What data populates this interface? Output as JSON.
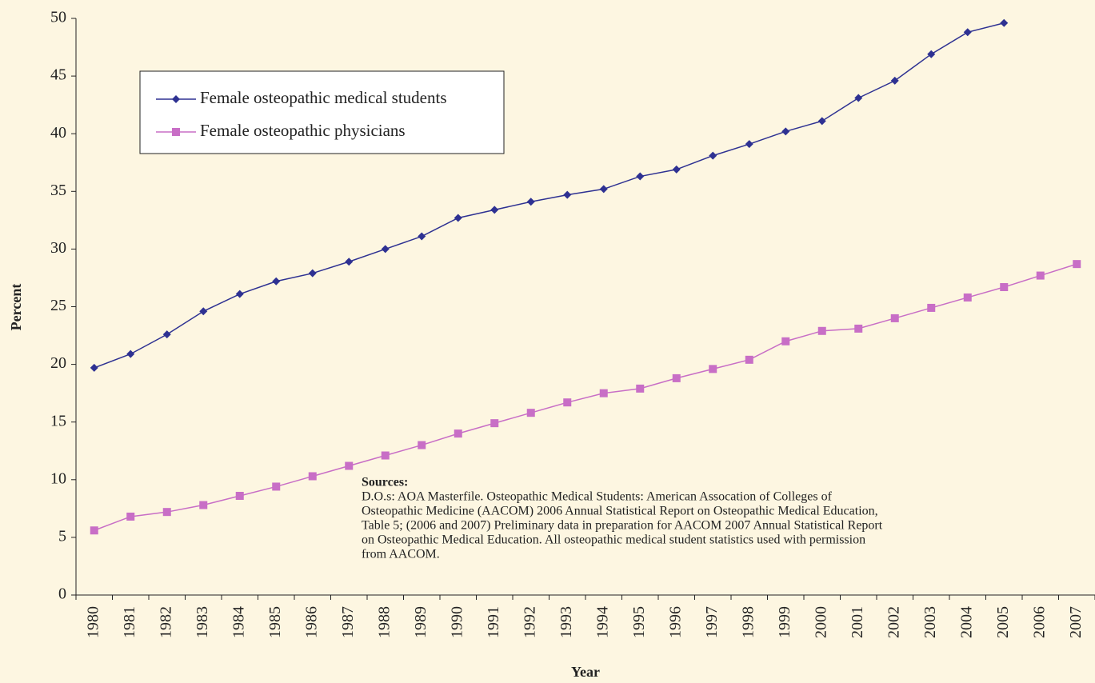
{
  "chart_data": {
    "type": "line",
    "x_label": "Year",
    "y_label": "Percent",
    "categories": [
      "1980",
      "1981",
      "1982",
      "1983",
      "1984",
      "1985",
      "1986",
      "1987",
      "1988",
      "1989",
      "1990",
      "1991",
      "1992",
      "1993",
      "1994",
      "1995",
      "1996",
      "1997",
      "1998",
      "1999",
      "2000",
      "2001",
      "2002",
      "2003",
      "2004",
      "2005",
      "2006",
      "2007"
    ],
    "series": [
      {
        "name": "Female osteopathic medical students",
        "color": "#2e3192",
        "marker": "diamond",
        "values": [
          19.7,
          20.9,
          22.6,
          24.6,
          26.1,
          27.2,
          27.9,
          28.9,
          30.0,
          31.1,
          32.7,
          33.4,
          34.1,
          34.7,
          35.2,
          36.3,
          36.9,
          38.1,
          39.1,
          40.2,
          41.1,
          43.1,
          44.6,
          46.9,
          48.8,
          49.6,
          null,
          null
        ]
      },
      {
        "name": "Female osteopathic physicians",
        "color": "#c86ec6",
        "marker": "square",
        "values": [
          5.6,
          6.8,
          7.2,
          7.8,
          8.6,
          9.4,
          10.3,
          11.2,
          12.1,
          13.0,
          14.0,
          14.9,
          15.8,
          16.7,
          17.5,
          17.9,
          18.8,
          19.6,
          20.4,
          22.0,
          22.9,
          23.1,
          24.0,
          24.9,
          25.8,
          26.7,
          27.7,
          28.7
        ]
      }
    ],
    "ylim": [
      0,
      50
    ],
    "yticks": [
      0,
      5,
      10,
      15,
      20,
      25,
      30,
      35,
      40,
      45,
      50
    ],
    "grid": false,
    "legend": "top-left",
    "annotation": {
      "title": "Sources:",
      "lines": [
        "D.O.s: AOA Masterfile. Osteopathic Medical Students: American Assocation of Colleges of",
        "Osteopathic Medicine (AACOM) 2006 Annual Statistical Report on Osteopathic Medical Education,",
        "Table 5; (2006 and 2007) Preliminary data in preparation for AACOM 2007 Annual Statistical Report",
        "on Osteopathic Medical Education. All osteopathic medical student statistics used with permission",
        "from AACOM."
      ]
    }
  }
}
